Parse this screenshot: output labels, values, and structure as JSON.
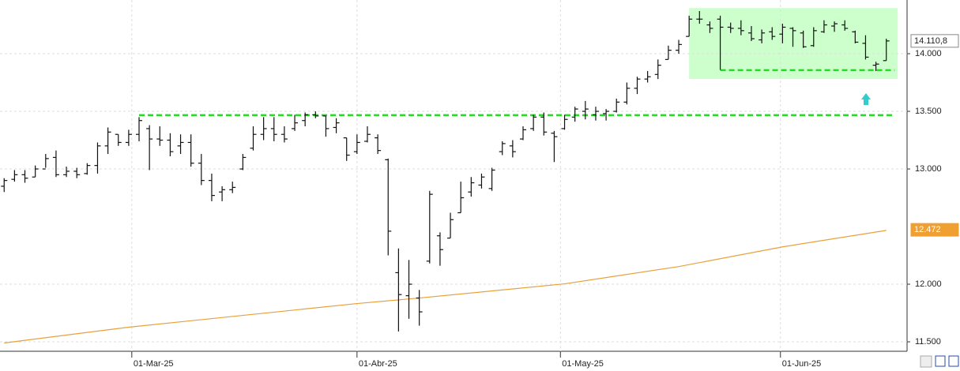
{
  "chart_data": {
    "type": "ohlc",
    "open": [
      12850,
      12910,
      12950,
      12930,
      13000,
      13100,
      12950,
      12980,
      12960,
      13030,
      13200,
      13300,
      13230,
      13300,
      13350,
      13260,
      13250,
      13200,
      13230,
      13050,
      12900,
      12800,
      12820,
      13000,
      13180,
      13300,
      13350,
      13300,
      13350,
      13420,
      13470,
      13460,
      13360,
      13270,
      13150,
      13240,
      13270,
      13080,
      12100,
      11900,
      11880,
      12200,
      12420,
      12400,
      12620,
      12800,
      12860,
      12830,
      13150,
      13200,
      13260,
      13350,
      13450,
      13310,
      13350,
      13450,
      13500,
      13470,
      13480,
      13500,
      13580,
      13700,
      13780,
      13820,
      13950,
      14030,
      14150,
      14300,
      14250,
      14300,
      14230,
      14220,
      14180,
      14120,
      14190,
      14170,
      14220,
      14180,
      14070,
      14190,
      14240,
      14250,
      14190,
      14090,
      13900,
      13940
    ],
    "high": [
      12920,
      12990,
      12990,
      13030,
      13130,
      13160,
      13020,
      13010,
      13050,
      13230,
      13360,
      13300,
      13340,
      13450,
      13380,
      13370,
      13310,
      13300,
      13300,
      13130,
      12960,
      12850,
      12890,
      13130,
      13370,
      13450,
      13450,
      13370,
      13470,
      13490,
      13500,
      13460,
      13440,
      13270,
      13300,
      13370,
      13300,
      13090,
      12310,
      12210,
      11950,
      12810,
      12450,
      12620,
      12890,
      12930,
      12960,
      13010,
      13240,
      13250,
      13370,
      13470,
      13490,
      13330,
      13470,
      13540,
      13590,
      13540,
      13520,
      13610,
      13750,
      13800,
      13850,
      13950,
      14070,
      14120,
      14330,
      14370,
      14280,
      14330,
      14270,
      14290,
      14240,
      14210,
      14230,
      14260,
      14230,
      14200,
      14230,
      14290,
      14280,
      14290,
      14200,
      14160,
      13930,
      14130
    ],
    "low": [
      12800,
      12890,
      12880,
      12930,
      13010,
      12930,
      12930,
      12920,
      12950,
      12960,
      13130,
      13200,
      13200,
      13240,
      12990,
      13200,
      13110,
      13130,
      13020,
      12860,
      12720,
      12720,
      12790,
      12990,
      13160,
      13250,
      13240,
      13230,
      13330,
      13370,
      13440,
      13280,
      13310,
      13070,
      13130,
      13230,
      13130,
      12250,
      11590,
      11700,
      11640,
      12180,
      12160,
      12400,
      12620,
      12760,
      12830,
      12810,
      13120,
      13100,
      13250,
      13330,
      13290,
      13060,
      13340,
      13410,
      13430,
      13420,
      13420,
      13490,
      13560,
      13650,
      13750,
      13780,
      13950,
      14000,
      14150,
      14260,
      14180,
      13860,
      14180,
      14160,
      14110,
      14090,
      14120,
      14090,
      14060,
      14050,
      14060,
      14180,
      14190,
      14200,
      14090,
      13950,
      13850,
      13940
    ],
    "close": [
      12900,
      12950,
      12920,
      13000,
      13090,
      12950,
      12980,
      12950,
      13030,
      13200,
      13320,
      13230,
      13300,
      13420,
      13260,
      13250,
      13150,
      13230,
      13050,
      12900,
      12770,
      12820,
      12840,
      13100,
      13300,
      13350,
      13300,
      13260,
      13400,
      13470,
      13460,
      13350,
      13400,
      13120,
      13230,
      13300,
      13160,
      12460,
      11910,
      12000,
      11760,
      12780,
      12300,
      12560,
      12750,
      12880,
      12930,
      12990,
      13220,
      13150,
      13340,
      13450,
      13320,
      13280,
      13430,
      13520,
      13520,
      13500,
      13500,
      13580,
      13700,
      13780,
      13800,
      13900,
      14030,
      14080,
      14300,
      14300,
      14220,
      14230,
      14220,
      14200,
      14130,
      14180,
      14150,
      14230,
      14200,
      14060,
      14200,
      14250,
      14260,
      14220,
      14100,
      13970,
      13910,
      14110.8
    ],
    "color": "#111111",
    "moving_average": {
      "x": [
        0,
        12,
        34,
        40,
        54,
        65,
        75,
        85
      ],
      "values": [
        11490,
        11627,
        11832,
        11880,
        12003,
        12153,
        12324,
        12467
      ],
      "color": "#e8a13a"
    },
    "levels": [
      {
        "value": 13467,
        "from": 13,
        "to": 85.8
      },
      {
        "value": 13857,
        "from": 69,
        "to": 85.8
      }
    ],
    "level_color": "#22dd22",
    "zone": {
      "xlim": [
        66,
        86.1
      ],
      "ylim": [
        13781,
        14396
      ],
      "color": "#ccffcc"
    },
    "price_tags": [
      {
        "value": 14110.8,
        "label": "14.110,8",
        "color": "#ffffff"
      },
      {
        "value": 12472,
        "label": "12.472",
        "color": "#f0a030"
      }
    ],
    "xlim": [
      -0.4,
      87
    ],
    "ylim": [
      11418,
      14466
    ],
    "xticks": [
      {
        "value": 12.3,
        "label": "01-Mar-25"
      },
      {
        "value": 34,
        "label": "01-Abr-25"
      },
      {
        "value": 53.6,
        "label": "01-May-25"
      },
      {
        "value": 74.8,
        "label": "01-Jun-25"
      }
    ],
    "yticks": [
      {
        "value": 11500,
        "label": "11.500"
      },
      {
        "value": 12000,
        "label": "12.000"
      },
      {
        "value": 13000,
        "label": "13.000"
      },
      {
        "value": 13500,
        "label": "13.500"
      },
      {
        "value": 14000,
        "label": "14.000"
      }
    ],
    "grid": true
  }
}
